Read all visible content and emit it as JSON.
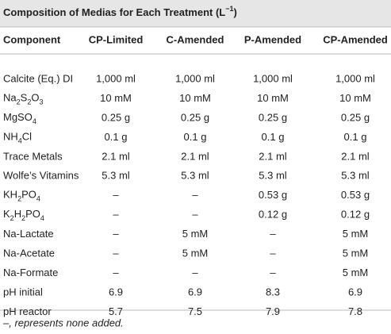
{
  "table": {
    "title": [
      "Composition of Medias for Each Treatment (L",
      "−1",
      ")"
    ],
    "columns": [
      "Component",
      "CP-Limited",
      "C-Amended",
      "P-Amended",
      "CP-Amended"
    ],
    "rows": [
      [
        "Calcite (Eq.) DI",
        "1,000 ml",
        "1,000 ml",
        "1,000 ml",
        "1,000 ml"
      ],
      [
        [
          "Na",
          "2",
          "S",
          "2",
          "O",
          "3"
        ],
        "10 mM",
        "10 mM",
        "10 mM",
        "10 mM"
      ],
      [
        [
          "MgSO",
          "4"
        ],
        "0.25 g",
        "0.25 g",
        "0.25 g",
        "0.25 g"
      ],
      [
        [
          "NH",
          "4",
          "Cl"
        ],
        "0.1 g",
        "0.1 g",
        "0.1 g",
        "0.1 g"
      ],
      [
        "Trace Metals",
        "2.1 ml",
        "2.1 ml",
        "2.1 ml",
        "2.1 ml"
      ],
      [
        "Wolfe’s Vitamins",
        "5.3 ml",
        "5.3 ml",
        "5.3 ml",
        "5.3 ml"
      ],
      [
        [
          "KH",
          "2",
          "PO",
          "4"
        ],
        "–",
        "–",
        "0.53 g",
        "0.53 g"
      ],
      [
        [
          "K",
          "2",
          "H",
          "2",
          "PO",
          "4"
        ],
        "–",
        "–",
        "0.12 g",
        "0.12 g"
      ],
      [
        "Na-Lactate",
        "–",
        "5 mM",
        "–",
        "5 mM"
      ],
      [
        "Na-Acetate",
        "–",
        "5 mM",
        "–",
        "5 mM"
      ],
      [
        "Na-Formate",
        "–",
        "–",
        "–",
        "5 mM"
      ],
      [
        "pH initial",
        "6.9",
        "6.9",
        "8.3",
        "6.9"
      ],
      [
        "pH reactor",
        "5.7",
        "7.5",
        "7.9",
        "7.8"
      ]
    ],
    "footnote": "–, represents none added."
  }
}
